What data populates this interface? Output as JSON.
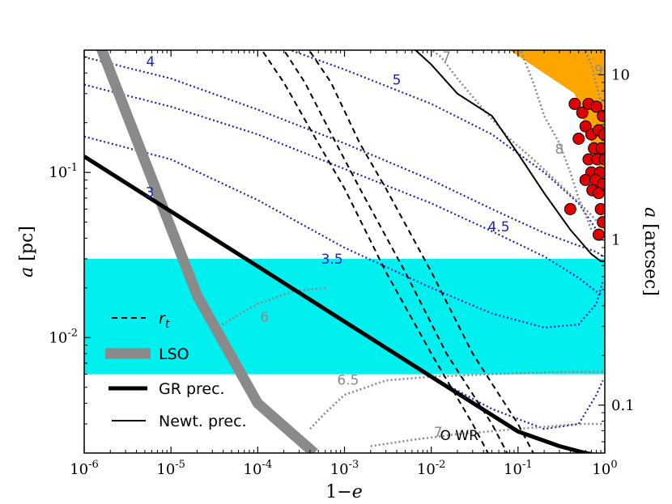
{
  "chart_data": {
    "type": "line",
    "xlabel_base": "1",
    "xlabel_minus": "−",
    "xlabel_var": "e",
    "ylabel_var": "a",
    "ylabel_unit": "[pc]",
    "y2label_var": "a",
    "y2label_unit": "[arcsec]",
    "xscale": "log",
    "yscale": "log",
    "xlim": [
      1e-06,
      1.0
    ],
    "ylim": [
      0.002,
      0.55
    ],
    "x_ticks": [
      {
        "value": 1e-06,
        "base": "10",
        "exp": "-6"
      },
      {
        "value": 1e-05,
        "base": "10",
        "exp": "-5"
      },
      {
        "value": 0.0001,
        "base": "10",
        "exp": "-4"
      },
      {
        "value": 0.001,
        "base": "10",
        "exp": "-3"
      },
      {
        "value": 0.01,
        "base": "10",
        "exp": "-2"
      },
      {
        "value": 0.1,
        "base": "10",
        "exp": "-1"
      },
      {
        "value": 1.0,
        "base": "10",
        "exp": "0"
      }
    ],
    "y_ticks": [
      {
        "value": 0.1,
        "base": "10",
        "exp": "-1"
      },
      {
        "value": 0.01,
        "base": "10",
        "exp": "-2"
      }
    ],
    "y2_ticks": [
      {
        "value": 0.39,
        "label": "10"
      },
      {
        "value": 0.039,
        "label": "1"
      },
      {
        "value": 0.0039,
        "label": "0.1"
      }
    ],
    "bands": [
      {
        "name": "cyan-band",
        "y_range": [
          0.006,
          0.03
        ],
        "color": "#00f0f0"
      }
    ],
    "regions": [
      {
        "name": "orange-region",
        "color": "#ffa500",
        "points": [
          [
            0.08,
            0.55
          ],
          [
            1.0,
            0.55
          ],
          [
            1.0,
            0.085
          ],
          [
            0.45,
            0.3
          ]
        ]
      }
    ],
    "blue_contours": [
      {
        "label": "3",
        "label_at": [
          5.7e-06,
          0.071
        ],
        "points": [
          [
            1e-06,
            0.125
          ],
          [
            1e-05,
            0.058
          ],
          [
            0.0001,
            0.027
          ],
          [
            0.001,
            0.0125
          ],
          [
            0.01,
            0.0058
          ],
          [
            0.05,
            0.0037
          ],
          [
            0.2,
            0.0028
          ],
          [
            0.5,
            0.003
          ],
          [
            0.8,
            0.0045
          ],
          [
            0.95,
            0.0055
          ]
        ]
      },
      {
        "label": "3.5",
        "label_at": [
          0.00072,
          0.028
        ],
        "points": [
          [
            1e-06,
            0.165
          ],
          [
            1e-05,
            0.12
          ],
          [
            0.0001,
            0.068
          ],
          [
            0.001,
            0.035
          ],
          [
            0.01,
            0.02
          ],
          [
            0.05,
            0.014
          ],
          [
            0.2,
            0.0115
          ],
          [
            0.5,
            0.012
          ],
          [
            0.8,
            0.016
          ],
          [
            0.95,
            0.022
          ]
        ]
      },
      {
        "label": "4",
        "label_at": [
          5.8e-06,
          0.44
        ],
        "points": [
          [
            1e-06,
            0.5
          ],
          [
            1e-05,
            0.37
          ],
          [
            0.0001,
            0.24
          ],
          [
            0.001,
            0.15
          ],
          [
            0.01,
            0.09
          ],
          [
            0.05,
            0.06
          ],
          [
            0.2,
            0.043
          ],
          [
            0.5,
            0.036
          ],
          [
            0.8,
            0.033
          ],
          [
            0.95,
            0.031
          ]
        ]
      },
      {
        "label": "4.5",
        "label_at": [
          0.06,
          0.044
        ],
        "points": [
          [
            1e-06,
            0.34
          ],
          [
            1e-05,
            0.25
          ],
          [
            0.0001,
            0.17
          ],
          [
            0.001,
            0.105
          ],
          [
            0.01,
            0.065
          ],
          [
            0.05,
            0.044
          ],
          [
            0.2,
            0.031
          ],
          [
            0.5,
            0.023
          ],
          [
            0.8,
            0.019
          ],
          [
            0.95,
            0.018
          ]
        ]
      },
      {
        "label": "5",
        "label_at": [
          0.004,
          0.34
        ],
        "points": [
          [
            0.00015,
            0.6
          ],
          [
            0.001,
            0.42
          ],
          [
            0.01,
            0.26
          ],
          [
            0.05,
            0.17
          ],
          [
            0.2,
            0.1
          ],
          [
            0.5,
            0.065
          ],
          [
            0.8,
            0.045
          ],
          [
            0.95,
            0.04
          ]
        ]
      }
    ],
    "grey_contours": [
      {
        "label": "6",
        "label_at": [
          0.00012,
          0.0125
        ],
        "points": [
          [
            0.0006,
            0.02
          ],
          [
            0.00025,
            0.019
          ],
          [
            0.0001,
            0.016
          ],
          [
            5e-05,
            0.013
          ],
          [
            3e-05,
            0.011
          ]
        ]
      },
      {
        "label": "6.5",
        "label_at": [
          0.0011,
          0.0052
        ],
        "points": [
          [
            0.0004,
            0.0028
          ],
          [
            0.0006,
            0.0035
          ],
          [
            0.001,
            0.0045
          ],
          [
            0.003,
            0.0055
          ],
          [
            0.01,
            0.0058
          ],
          [
            0.05,
            0.006
          ],
          [
            0.3,
            0.0062
          ],
          [
            1.0,
            0.0062
          ]
        ]
      },
      {
        "label": "7",
        "label_at": [
          0.015,
          0.47
        ],
        "points": [
          [
            0.008,
            0.6
          ],
          [
            0.013,
            0.5
          ],
          [
            0.02,
            0.37
          ],
          [
            0.04,
            0.24
          ],
          [
            0.08,
            0.16
          ],
          [
            0.15,
            0.12
          ],
          [
            0.3,
            0.085
          ],
          [
            0.6,
            0.06
          ],
          [
            1.0,
            0.045
          ]
        ]
      },
      {
        "label": "7",
        "label_at": [
          0.012,
          0.0025
        ],
        "points": [
          [
            0.002,
            0.0022
          ],
          [
            0.006,
            0.0024
          ],
          [
            0.02,
            0.0026
          ],
          [
            0.1,
            0.0028
          ],
          [
            0.5,
            0.003
          ],
          [
            1.0,
            0.003
          ]
        ]
      },
      {
        "label": "8",
        "label_at": [
          0.3,
          0.13
        ],
        "points": [
          [
            0.1,
            0.6
          ],
          [
            0.15,
            0.35
          ],
          [
            0.2,
            0.22
          ],
          [
            0.3,
            0.15
          ],
          [
            0.4,
            0.1
          ],
          [
            0.5,
            0.07
          ],
          [
            0.7,
            0.045
          ]
        ]
      },
      {
        "label": "9",
        "label_at": [
          0.85,
          0.39
        ],
        "points": [
          [
            0.55,
            0.6
          ],
          [
            0.7,
            0.45
          ],
          [
            0.85,
            0.3
          ],
          [
            1.0,
            0.22
          ]
        ]
      }
    ],
    "rt_lines": [
      {
        "points": [
          [
            0.0001,
            0.6
          ],
          [
            0.0002,
            0.35
          ],
          [
            0.0005,
            0.15
          ],
          [
            0.001,
            0.08
          ],
          [
            0.003,
            0.025
          ],
          [
            0.01,
            0.008
          ],
          [
            0.03,
            0.003
          ],
          [
            0.045,
            0.002
          ]
        ]
      },
      {
        "points": [
          [
            0.00035,
            0.6
          ],
          [
            0.0007,
            0.35
          ],
          [
            0.0015,
            0.15
          ],
          [
            0.003,
            0.08
          ],
          [
            0.01,
            0.025
          ],
          [
            0.03,
            0.008
          ],
          [
            0.1,
            0.003
          ],
          [
            0.15,
            0.002
          ]
        ]
      },
      {
        "points": [
          [
            0.00018,
            0.6
          ],
          [
            0.00035,
            0.35
          ],
          [
            0.0008,
            0.15
          ],
          [
            0.0015,
            0.08
          ],
          [
            0.005,
            0.025
          ],
          [
            0.015,
            0.008
          ],
          [
            0.05,
            0.003
          ],
          [
            0.075,
            0.002
          ]
        ]
      }
    ],
    "lso_line": {
      "points": [
        [
          1.5e-06,
          0.6
        ],
        [
          2e-05,
          0.018
        ],
        [
          0.0001,
          0.004
        ],
        [
          0.00045,
          0.002
        ]
      ]
    },
    "gr_prec_line": {
      "points": [
        [
          1e-06,
          0.125
        ],
        [
          1e-05,
          0.058
        ],
        [
          0.0001,
          0.027
        ],
        [
          0.001,
          0.0125
        ],
        [
          0.01,
          0.0058
        ],
        [
          0.1,
          0.0027
        ],
        [
          0.3,
          0.0022
        ],
        [
          0.6,
          0.002
        ],
        [
          1.0,
          0.0019
        ]
      ]
    },
    "newt_prec_line": {
      "points": [
        [
          0.0055,
          0.6
        ],
        [
          0.01,
          0.45
        ],
        [
          0.02,
          0.3
        ],
        [
          0.05,
          0.22
        ],
        [
          0.1,
          0.13
        ],
        [
          0.2,
          0.075
        ],
        [
          0.4,
          0.045
        ],
        [
          0.7,
          0.032
        ],
        [
          0.9,
          0.029
        ],
        [
          1.0,
          0.029
        ]
      ]
    },
    "stars": [
      [
        0.45,
        0.26
      ],
      [
        0.55,
        0.23
      ],
      [
        0.65,
        0.26
      ],
      [
        0.8,
        0.25
      ],
      [
        0.95,
        0.22
      ],
      [
        0.6,
        0.19
      ],
      [
        0.7,
        0.17
      ],
      [
        0.85,
        0.18
      ],
      [
        0.98,
        0.17
      ],
      [
        0.5,
        0.16
      ],
      [
        0.75,
        0.14
      ],
      [
        0.92,
        0.14
      ],
      [
        0.65,
        0.12
      ],
      [
        0.82,
        0.12
      ],
      [
        1.0,
        0.12
      ],
      [
        0.7,
        0.1
      ],
      [
        0.88,
        0.1
      ],
      [
        0.6,
        0.09
      ],
      [
        0.78,
        0.09
      ],
      [
        0.95,
        0.085
      ],
      [
        0.72,
        0.078
      ],
      [
        0.85,
        0.075
      ],
      [
        0.4,
        0.06
      ],
      [
        0.9,
        0.06
      ],
      [
        0.95,
        0.05
      ],
      [
        0.85,
        0.042
      ]
    ],
    "annotations": [
      {
        "text": "O WR",
        "at": [
          0.021,
          0.0024
        ]
      }
    ],
    "legend": {
      "placement": "lower-left",
      "entries": [
        {
          "label_var": "r",
          "label_sub": "t",
          "style": "dashed"
        },
        {
          "label": "LSO",
          "style": "thick-grey"
        },
        {
          "label": "GR prec.",
          "style": "thick-black"
        },
        {
          "label": "Newt. prec.",
          "style": "thin-black"
        }
      ]
    },
    "colors": {
      "blue": "#1f1fb4",
      "grey": "#8a8a8a",
      "cyan": "#00f0f0",
      "orange": "#ffa500",
      "star": "#e00000",
      "black": "#000000"
    }
  }
}
